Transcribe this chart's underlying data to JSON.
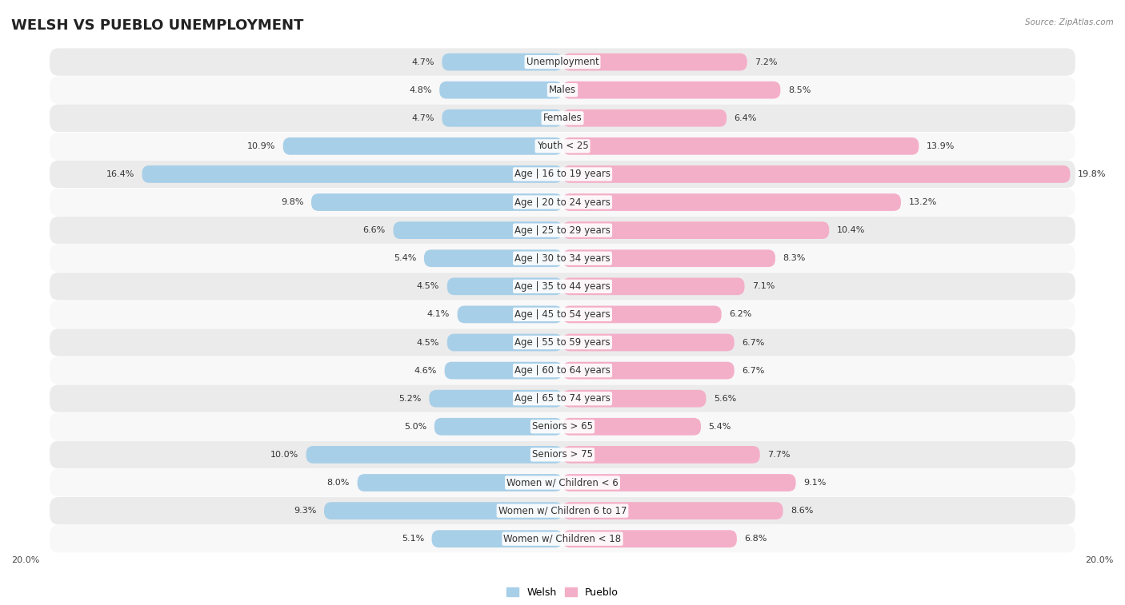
{
  "title": "WELSH VS PUEBLO UNEMPLOYMENT",
  "source": "Source: ZipAtlas.com",
  "categories": [
    "Unemployment",
    "Males",
    "Females",
    "Youth < 25",
    "Age | 16 to 19 years",
    "Age | 20 to 24 years",
    "Age | 25 to 29 years",
    "Age | 30 to 34 years",
    "Age | 35 to 44 years",
    "Age | 45 to 54 years",
    "Age | 55 to 59 years",
    "Age | 60 to 64 years",
    "Age | 65 to 74 years",
    "Seniors > 65",
    "Seniors > 75",
    "Women w/ Children < 6",
    "Women w/ Children 6 to 17",
    "Women w/ Children < 18"
  ],
  "welsh_values": [
    4.7,
    4.8,
    4.7,
    10.9,
    16.4,
    9.8,
    6.6,
    5.4,
    4.5,
    4.1,
    4.5,
    4.6,
    5.2,
    5.0,
    10.0,
    8.0,
    9.3,
    5.1
  ],
  "pueblo_values": [
    7.2,
    8.5,
    6.4,
    13.9,
    19.8,
    13.2,
    10.4,
    8.3,
    7.1,
    6.2,
    6.7,
    6.7,
    5.6,
    5.4,
    7.7,
    9.1,
    8.6,
    6.8
  ],
  "welsh_color": "#a8cfe8",
  "pueblo_color": "#f4afc8",
  "row_bg_light": "#ebebeb",
  "row_bg_white": "#f8f8f8",
  "max_value": 20.0,
  "legend_welsh": "Welsh",
  "legend_pueblo": "Pueblo",
  "title_fontsize": 13,
  "label_fontsize": 8.5,
  "value_fontsize": 8.0
}
